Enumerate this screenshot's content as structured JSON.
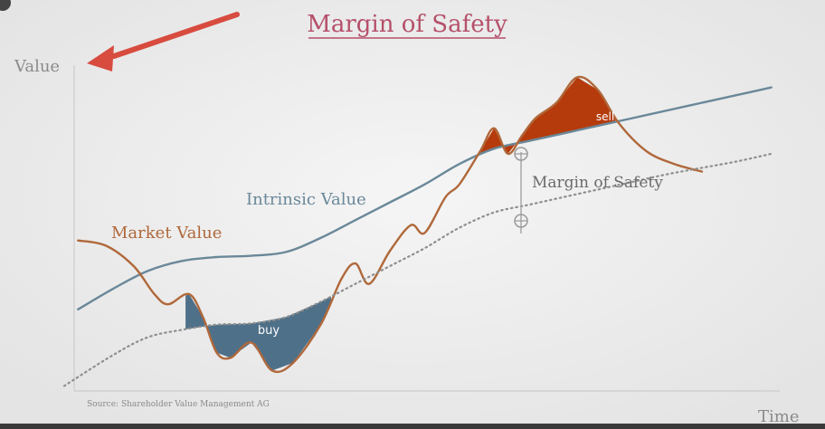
{
  "chart_data": {
    "type": "line",
    "title": "Margin of Safety",
    "xlabel": "Time",
    "ylabel": "Value",
    "source": "Source: Shareholder Value Management AG",
    "series": [
      {
        "name": "Intrinsic Value",
        "color": "#6a8899",
        "points": [
          [
            0,
            3.2
          ],
          [
            5,
            4.0
          ],
          [
            10,
            4.7
          ],
          [
            15,
            5.1
          ],
          [
            20,
            5.25
          ],
          [
            25,
            5.3
          ],
          [
            30,
            5.45
          ],
          [
            35,
            6.0
          ],
          [
            40,
            6.7
          ],
          [
            45,
            7.4
          ],
          [
            50,
            8.1
          ],
          [
            55,
            8.9
          ],
          [
            60,
            9.5
          ],
          [
            65,
            9.8
          ],
          [
            70,
            10.1
          ],
          [
            75,
            10.4
          ],
          [
            80,
            10.7
          ],
          [
            85,
            11.0
          ],
          [
            90,
            11.3
          ],
          [
            95,
            11.6
          ],
          [
            100,
            11.9
          ]
        ]
      },
      {
        "name": "Market Value",
        "color": "#b0683a",
        "points": [
          [
            0,
            5.9
          ],
          [
            4,
            5.7
          ],
          [
            8,
            4.9
          ],
          [
            11,
            3.8
          ],
          [
            13,
            3.4
          ],
          [
            16,
            3.8
          ],
          [
            18,
            2.9
          ],
          [
            20,
            1.5
          ],
          [
            22,
            1.3
          ],
          [
            25,
            1.9
          ],
          [
            28,
            0.8
          ],
          [
            31,
            1.1
          ],
          [
            35,
            2.6
          ],
          [
            38,
            4.4
          ],
          [
            40,
            5.0
          ],
          [
            42,
            4.2
          ],
          [
            45,
            5.5
          ],
          [
            48,
            6.5
          ],
          [
            50,
            6.2
          ],
          [
            53,
            7.6
          ],
          [
            55,
            8.1
          ],
          [
            58,
            9.4
          ],
          [
            60,
            10.3
          ],
          [
            62,
            9.3
          ],
          [
            64,
            10.0
          ],
          [
            66,
            10.7
          ],
          [
            69,
            11.3
          ],
          [
            72,
            12.3
          ],
          [
            75,
            11.8
          ],
          [
            78,
            10.5
          ],
          [
            82,
            9.4
          ],
          [
            86,
            8.9
          ],
          [
            90,
            8.6
          ]
        ]
      },
      {
        "name": "",
        "style": "dotted",
        "color": "#8e8e8e",
        "points": [
          [
            -2,
            0.2
          ],
          [
            5,
            1.4
          ],
          [
            10,
            2.1
          ],
          [
            15,
            2.4
          ],
          [
            20,
            2.6
          ],
          [
            25,
            2.65
          ],
          [
            30,
            2.9
          ],
          [
            35,
            3.5
          ],
          [
            40,
            4.2
          ],
          [
            45,
            4.9
          ],
          [
            50,
            5.6
          ],
          [
            55,
            6.4
          ],
          [
            60,
            7.0
          ],
          [
            65,
            7.3
          ],
          [
            70,
            7.6
          ],
          [
            75,
            7.9
          ],
          [
            80,
            8.2
          ],
          [
            85,
            8.5
          ],
          [
            90,
            8.75
          ],
          [
            95,
            9.0
          ],
          [
            100,
            9.3
          ]
        ]
      }
    ],
    "annotations": [
      {
        "label": "Intrinsic Value",
        "color": "#6a8899"
      },
      {
        "label": "Market Value",
        "color": "#b0683a"
      },
      {
        "label": "buy",
        "color": "#4f7089"
      },
      {
        "label": "sell",
        "color": "#b53b0c"
      },
      {
        "label": "Margin of Safety",
        "color": "#6a6a6a"
      }
    ],
    "xlim": [
      -5,
      102
    ],
    "ylim": [
      0,
      13.2
    ],
    "grid": false,
    "legend": "none"
  },
  "arrow_color": "#d84b3f",
  "title_color": "#b5506a"
}
